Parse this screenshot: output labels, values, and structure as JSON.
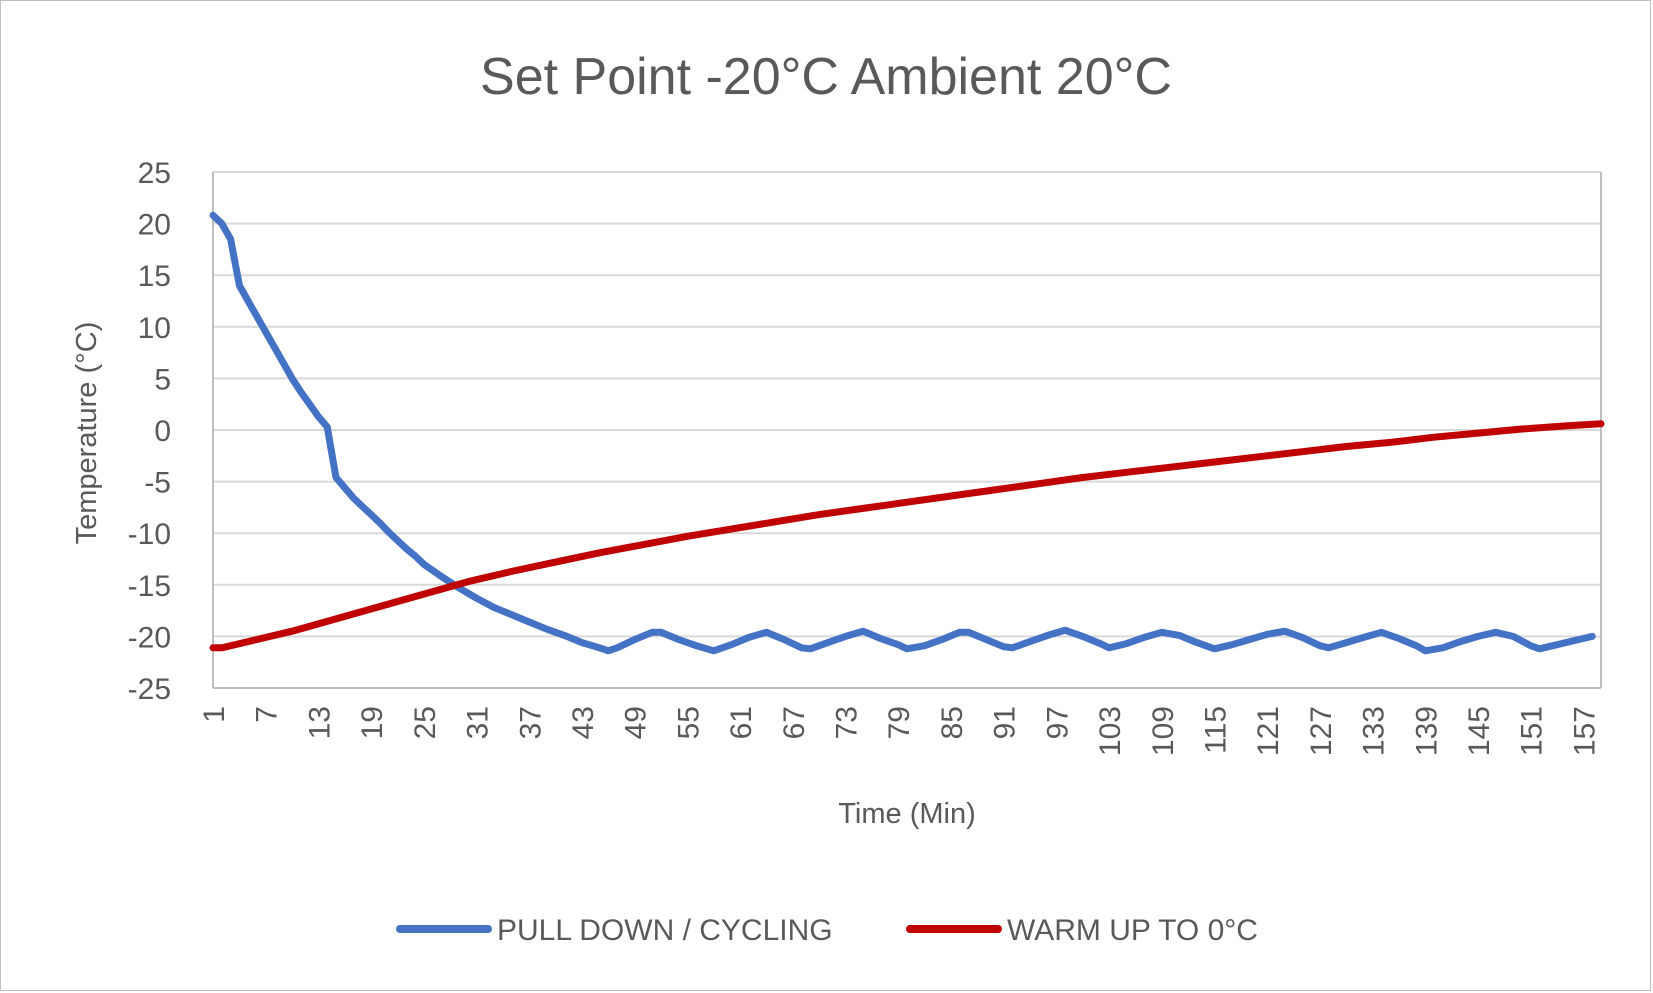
{
  "chart_data": {
    "type": "line",
    "title": "Set Point -20°C Ambient 20°C",
    "xlabel": "Time (Min)",
    "ylabel": "Temperature (°C)",
    "ylim": [
      -25,
      25
    ],
    "y_ticks": [
      25,
      20,
      15,
      10,
      5,
      0,
      -5,
      -10,
      -15,
      -20,
      -25
    ],
    "x_range": [
      1,
      159
    ],
    "x_ticks": [
      1,
      7,
      13,
      19,
      25,
      31,
      37,
      43,
      49,
      55,
      61,
      67,
      73,
      79,
      85,
      91,
      97,
      103,
      109,
      115,
      121,
      127,
      133,
      139,
      145,
      151,
      157
    ],
    "grid": true,
    "legend": "bottom",
    "series": [
      {
        "name": "PULL DOWN / CYCLING",
        "color": "#4472c4",
        "points": [
          [
            1,
            20.8
          ],
          [
            2,
            20
          ],
          [
            3,
            18.5
          ],
          [
            4,
            14
          ],
          [
            5,
            12.5
          ],
          [
            6,
            11
          ],
          [
            7,
            9.5
          ],
          [
            8,
            8
          ],
          [
            9,
            6.5
          ],
          [
            10,
            5
          ],
          [
            11,
            3.7
          ],
          [
            12,
            2.5
          ],
          [
            13,
            1.3
          ],
          [
            14,
            0.3
          ],
          [
            15,
            -4.6
          ],
          [
            16,
            -5.6
          ],
          [
            17,
            -6.6
          ],
          [
            18,
            -7.4
          ],
          [
            19,
            -8.2
          ],
          [
            20,
            -9
          ],
          [
            21,
            -9.9
          ],
          [
            22,
            -10.7
          ],
          [
            23,
            -11.5
          ],
          [
            24,
            -12.2
          ],
          [
            25,
            -13
          ],
          [
            27,
            -14.2
          ],
          [
            29,
            -15.3
          ],
          [
            31,
            -16.3
          ],
          [
            33,
            -17.2
          ],
          [
            35,
            -17.9
          ],
          [
            37,
            -18.6
          ],
          [
            39,
            -19.3
          ],
          [
            41,
            -19.9
          ],
          [
            43,
            -20.6
          ],
          [
            45,
            -21.1
          ],
          [
            46,
            -21.4
          ],
          [
            47,
            -21.1
          ],
          [
            49,
            -20.3
          ],
          [
            51,
            -19.6
          ],
          [
            52,
            -19.6
          ],
          [
            54,
            -20.3
          ],
          [
            56,
            -20.9
          ],
          [
            58,
            -21.4
          ],
          [
            60,
            -20.8
          ],
          [
            62,
            -20.1
          ],
          [
            64,
            -19.6
          ],
          [
            66,
            -20.3
          ],
          [
            68,
            -21.1
          ],
          [
            69,
            -21.2
          ],
          [
            71,
            -20.6
          ],
          [
            73,
            -20
          ],
          [
            75,
            -19.5
          ],
          [
            77,
            -20.2
          ],
          [
            79,
            -20.8
          ],
          [
            80,
            -21.2
          ],
          [
            82,
            -20.9
          ],
          [
            84,
            -20.3
          ],
          [
            86,
            -19.6
          ],
          [
            87,
            -19.6
          ],
          [
            89,
            -20.3
          ],
          [
            91,
            -21
          ],
          [
            92,
            -21.1
          ],
          [
            94,
            -20.5
          ],
          [
            96,
            -19.9
          ],
          [
            98,
            -19.4
          ],
          [
            100,
            -20
          ],
          [
            102,
            -20.7
          ],
          [
            103,
            -21.1
          ],
          [
            105,
            -20.7
          ],
          [
            107,
            -20.1
          ],
          [
            109,
            -19.6
          ],
          [
            111,
            -19.9
          ],
          [
            113,
            -20.6
          ],
          [
            115,
            -21.2
          ],
          [
            117,
            -20.8
          ],
          [
            119,
            -20.3
          ],
          [
            121,
            -19.8
          ],
          [
            123,
            -19.5
          ],
          [
            125,
            -20.1
          ],
          [
            127,
            -20.9
          ],
          [
            128,
            -21.1
          ],
          [
            130,
            -20.6
          ],
          [
            132,
            -20.1
          ],
          [
            134,
            -19.6
          ],
          [
            136,
            -20.2
          ],
          [
            138,
            -20.9
          ],
          [
            139,
            -21.4
          ],
          [
            141,
            -21.1
          ],
          [
            143,
            -20.5
          ],
          [
            145,
            -20
          ],
          [
            147,
            -19.6
          ],
          [
            149,
            -20
          ],
          [
            151,
            -20.9
          ],
          [
            152,
            -21.2
          ],
          [
            154,
            -20.8
          ],
          [
            156,
            -20.4
          ],
          [
            158,
            -20
          ]
        ]
      },
      {
        "name": "WARM UP TO 0°C",
        "color": "#c00000",
        "points": [
          [
            1,
            -21.1
          ],
          [
            2,
            -21.1
          ],
          [
            5,
            -20.5
          ],
          [
            10,
            -19.5
          ],
          [
            15,
            -18.3
          ],
          [
            20,
            -17.1
          ],
          [
            25,
            -15.9
          ],
          [
            30,
            -14.7
          ],
          [
            35,
            -13.7
          ],
          [
            40,
            -12.8
          ],
          [
            45,
            -11.9
          ],
          [
            50,
            -11.1
          ],
          [
            55,
            -10.3
          ],
          [
            60,
            -9.6
          ],
          [
            65,
            -8.9
          ],
          [
            70,
            -8.2
          ],
          [
            75,
            -7.6
          ],
          [
            80,
            -7
          ],
          [
            85,
            -6.4
          ],
          [
            90,
            -5.8
          ],
          [
            95,
            -5.2
          ],
          [
            100,
            -4.6
          ],
          [
            105,
            -4.1
          ],
          [
            110,
            -3.6
          ],
          [
            115,
            -3.1
          ],
          [
            120,
            -2.6
          ],
          [
            125,
            -2.1
          ],
          [
            130,
            -1.6
          ],
          [
            135,
            -1.2
          ],
          [
            140,
            -0.7
          ],
          [
            145,
            -0.3
          ],
          [
            150,
            0.1
          ],
          [
            155,
            0.4
          ],
          [
            159,
            0.6
          ]
        ]
      }
    ]
  }
}
